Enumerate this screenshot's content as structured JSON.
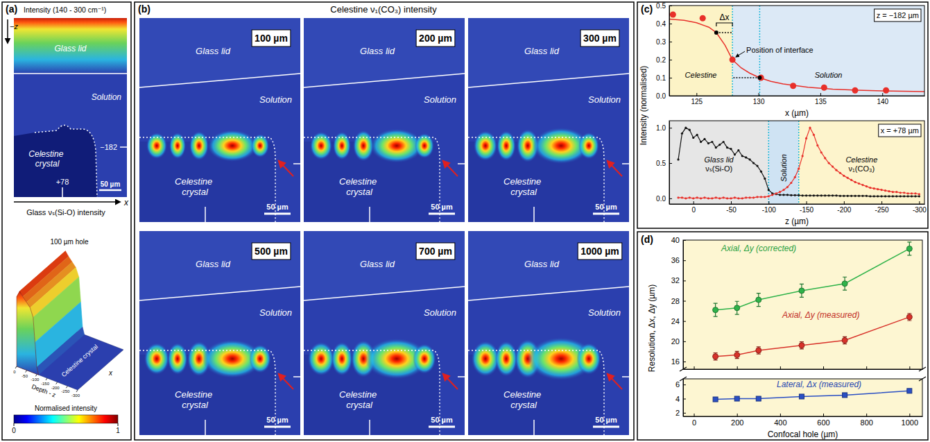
{
  "panel_a": {
    "letter": "(a)",
    "title": "Intensity (140 - 300 cm⁻¹)",
    "axis_labels": [
      "−z",
      "x"
    ],
    "regions": [
      "Glass lid",
      "Solution",
      "Celestine crystal"
    ],
    "positions": [
      "−182",
      "+78"
    ],
    "scale_bar": "50 µm",
    "surface": {
      "title": "Glass νₛ(Si-O) intensity",
      "hole": "100 µm hole",
      "crystal": "Celestine crystal",
      "depth_label": "Depth - z",
      "x_label": "x",
      "depth_ticks": [
        0,
        -50,
        -100,
        -150,
        -200,
        -250,
        -300
      ]
    },
    "colorbar": {
      "title": "Normalised intensity",
      "ticks": [
        0,
        1
      ]
    }
  },
  "panel_b": {
    "letter": "(b)",
    "title": "Celestine ν₁(CO₃) intensity",
    "holes": [
      "100 µm",
      "200 µm",
      "300 µm",
      "500 µm",
      "700 µm",
      "1000 µm"
    ],
    "regions": [
      "Glass lid",
      "Solution",
      "Celestine crystal"
    ],
    "scale_bar": "50 µm"
  },
  "chart_data": [
    {
      "letter": "(c)",
      "type": "scatter",
      "annotation": "z = −182 µm",
      "xlabel": "x (µm)",
      "ylabel": "Intensity (normalised)",
      "xlim": [
        122.8,
        143.4
      ],
      "xticks": [
        125,
        130,
        135,
        140
      ],
      "ylim": [
        0,
        0.5
      ],
      "yticks": [
        {
          "value": 0,
          "label": "0.0"
        },
        0.1,
        0.2,
        0.3,
        0.4,
        0.5
      ],
      "regions": [
        {
          "name": "Celestine",
          "range": [
            122.8,
            127.9
          ],
          "color": "#fcf3c6"
        },
        {
          "name": "Solution",
          "range": [
            127.9,
            143.4
          ],
          "color": "#dce9f6"
        }
      ],
      "interface": {
        "label": "Position of interface",
        "x": 127.9,
        "value": 0.2
      },
      "delta": {
        "label": "Δx",
        "points": [
          [
            126.6,
            0.35
          ],
          [
            130.1,
            0.1
          ]
        ]
      },
      "series": [
        {
          "type": "scatter",
          "color": "#e8302a",
          "marker": "circle",
          "x": [
            123.1,
            125.5,
            127.9,
            130.2,
            132.8,
            135.3,
            137.8,
            140.3
          ],
          "values": [
            0.45,
            0.43,
            0.2,
            0.1,
            0.055,
            0.045,
            0.03,
            0.03
          ]
        },
        {
          "type": "line",
          "color": "#e8302a",
          "x": [
            122.8,
            124,
            125,
            126,
            126.6,
            127.3,
            127.9,
            128.6,
            129.3,
            130.1,
            131,
            132,
            134,
            136,
            138,
            140,
            143.4
          ],
          "values": [
            0.425,
            0.418,
            0.405,
            0.38,
            0.35,
            0.28,
            0.2,
            0.155,
            0.125,
            0.1,
            0.08,
            0.065,
            0.047,
            0.037,
            0.031,
            0.027,
            0.023
          ]
        }
      ]
    },
    {
      "type": "line",
      "annotation": "x = +78 µm",
      "xlabel": "z (µm)",
      "xlim": [
        32,
        -307
      ],
      "xticks": [
        0,
        -50,
        -100,
        -150,
        -200,
        -250,
        -300
      ],
      "ylim": [
        -0.08,
        1.1
      ],
      "yticks": [
        {
          "value": 0,
          "label": "0.0"
        },
        0.5,
        {
          "value": 1,
          "label": "1.0"
        }
      ],
      "regions": [
        {
          "name": "Glass lid",
          "sublabel": "νₛ(Si-O)",
          "range": [
            32,
            -100
          ],
          "color": "#e6e6e6"
        },
        {
          "name": "Solution",
          "range": [
            -100,
            -140
          ],
          "color": "#cfe3f3"
        },
        {
          "name": "Celestine",
          "sublabel": "ν₁(CO₃)",
          "range": [
            -140,
            -307
          ],
          "color": "#fdf4cc"
        }
      ],
      "x": [
        20,
        15,
        10,
        5,
        0,
        -5,
        -10,
        -15,
        -20,
        -25,
        -30,
        -35,
        -40,
        -45,
        -50,
        -55,
        -60,
        -65,
        -70,
        -75,
        -80,
        -85,
        -90,
        -95,
        -100,
        -105,
        -110,
        -115,
        -120,
        -125,
        -130,
        -135,
        -140,
        -145,
        -150,
        -155,
        -160,
        -165,
        -170,
        -175,
        -180,
        -185,
        -190,
        -195,
        -200,
        -205,
        -210,
        -215,
        -220,
        -225,
        -230,
        -235,
        -240,
        -245,
        -250,
        -255,
        -260,
        -265,
        -270,
        -275,
        -280,
        -285,
        -290,
        -295,
        -300
      ],
      "series": [
        {
          "color": "#111111",
          "marker": "circle",
          "values": [
            0.55,
            0.92,
            1.0,
            0.97,
            0.86,
            0.9,
            0.8,
            0.84,
            0.78,
            0.8,
            0.72,
            0.76,
            0.8,
            0.72,
            0.7,
            0.62,
            0.68,
            0.6,
            0.58,
            0.55,
            0.5,
            0.46,
            0.38,
            0.28,
            0.12,
            0.07,
            0.06,
            0.05,
            0.05,
            0.05,
            0.045,
            0.045,
            0.045,
            0.04,
            0.04,
            0.04,
            0.04,
            0.04,
            0.04,
            0.04,
            0.04,
            0.04,
            0.04,
            0.035,
            0.035,
            0.035,
            0.035,
            0.035,
            0.035,
            0.035,
            0.035,
            0.03,
            0.03,
            0.03,
            0.03,
            0.03,
            0.03,
            0.03,
            0.03,
            0.03,
            0.03,
            0.03,
            0.03,
            0.03,
            0.03
          ]
        },
        {
          "color": "#e8302a",
          "marker": "circle",
          "values": [
            0.01,
            0.01,
            0,
            0.01,
            0,
            0.01,
            0,
            0.01,
            0,
            0,
            0.01,
            0,
            0.01,
            0,
            0,
            0.01,
            0,
            0,
            0.01,
            0.01,
            0.01,
            0.02,
            0.02,
            0.02,
            0.03,
            0.05,
            0.07,
            0.09,
            0.12,
            0.16,
            0.22,
            0.3,
            0.42,
            0.6,
            0.85,
            1.0,
            0.9,
            0.75,
            0.65,
            0.57,
            0.5,
            0.45,
            0.4,
            0.36,
            0.32,
            0.29,
            0.26,
            0.23,
            0.21,
            0.19,
            0.17,
            0.15,
            0.14,
            0.13,
            0.12,
            0.11,
            0.1,
            0.09,
            0.09,
            0.08,
            0.08,
            0.07,
            0.07,
            0.07,
            0.06
          ]
        }
      ]
    },
    {
      "letter": "(d)",
      "type": "line",
      "ylabel": "Resolution, Δx, Δy (µm)",
      "xlim": [
        -50,
        1060
      ],
      "xticks": [
        0,
        200,
        400,
        600,
        800,
        1000
      ],
      "tick_labels": "y",
      "ylim": [
        14.5,
        40
      ],
      "yticks": [
        16,
        20,
        24,
        28,
        32,
        36,
        40
      ],
      "x": [
        100,
        200,
        300,
        500,
        700,
        1000
      ],
      "series": [
        {
          "name": "Axial, Δy (corrected)",
          "color": "#2fb34a",
          "marker": "circle",
          "values": [
            26.2,
            26.6,
            28.2,
            30.0,
            31.4,
            38.3
          ],
          "errors": [
            1.3,
            1.3,
            1.3,
            1.3,
            1.3,
            1.3
          ]
        },
        {
          "name": "Axial, Δy (measured)",
          "color": "#d8322a",
          "marker": "circle",
          "values": [
            17.0,
            17.3,
            18.2,
            19.2,
            20.2,
            24.8
          ],
          "errors": [
            0.7,
            0.7,
            0.7,
            0.7,
            0.7,
            0.7
          ]
        }
      ]
    },
    {
      "type": "line",
      "xlabel": "Confocal hole (µm)",
      "xlim": [
        -50,
        1060
      ],
      "xticks": [
        0,
        200,
        400,
        600,
        800,
        1000
      ],
      "ylim": [
        1.5,
        6.8
      ],
      "yticks": [
        2,
        4,
        6
      ],
      "x": [
        100,
        200,
        300,
        500,
        700,
        1000
      ],
      "series": [
        {
          "name": "Lateral, Δx (measured)",
          "color": "#2a4fc4",
          "marker": "square",
          "values": [
            3.9,
            4.0,
            4.0,
            4.3,
            4.5,
            5.1
          ],
          "errors": [
            0.25,
            0.2,
            0.2,
            0.2,
            0.2,
            0.25
          ]
        }
      ]
    }
  ]
}
